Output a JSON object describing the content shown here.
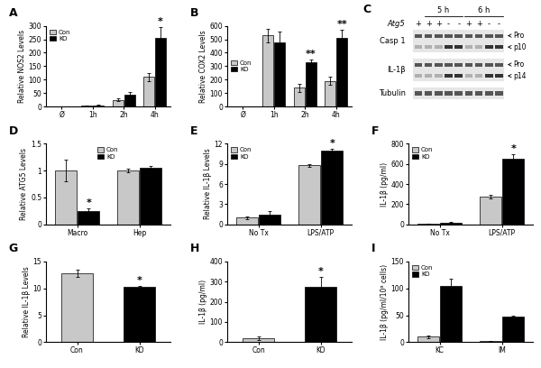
{
  "chart_data": [
    {
      "type": "bar",
      "title": "A",
      "y_label": "Relative NOS2 Levels",
      "categories": [
        "Ø",
        "1h",
        "2h",
        "4h"
      ],
      "series": [
        {
          "name": "Con",
          "color": "#c8c8c8",
          "values": [
            1,
            3,
            25,
            110
          ],
          "errors": [
            0,
            1,
            5,
            15
          ]
        },
        {
          "name": "KO",
          "color": "#000000",
          "values": [
            1,
            5,
            45,
            255
          ],
          "errors": [
            0,
            2,
            10,
            40
          ]
        }
      ],
      "ylim": [
        0,
        300
      ],
      "yticks": [
        0,
        50,
        100,
        150,
        200,
        250,
        300
      ],
      "legend": "upper left",
      "annotations": [
        {
          "text": "*",
          "category": "4h",
          "series": "KO"
        }
      ]
    },
    {
      "type": "bar",
      "title": "B",
      "y_label": "Relative COX2 Levels",
      "categories": [
        "Ø",
        "1h",
        "2h",
        "4h"
      ],
      "series": [
        {
          "name": "Con",
          "color": "#c8c8c8",
          "values": [
            1,
            530,
            140,
            190
          ],
          "errors": [
            0,
            50,
            30,
            30
          ]
        },
        {
          "name": "KO",
          "color": "#000000",
          "values": [
            1,
            480,
            330,
            510
          ],
          "errors": [
            0,
            80,
            20,
            60
          ]
        }
      ],
      "ylim": [
        0,
        600
      ],
      "yticks": [
        0,
        100,
        200,
        300,
        400,
        500,
        600
      ],
      "legend": "center left",
      "annotations": [
        {
          "text": "**",
          "category": "2h",
          "series": "KO"
        },
        {
          "text": "**",
          "category": "4h",
          "series": "KO"
        }
      ]
    },
    {
      "type": "bar",
      "title": "D",
      "y_label": "Relative ATG5 Levels",
      "categories": [
        "Macro",
        "Hep"
      ],
      "series": [
        {
          "name": "Con",
          "color": "#c8c8c8",
          "values": [
            1.0,
            1.0
          ],
          "errors": [
            0.2,
            0.03
          ]
        },
        {
          "name": "KO",
          "color": "#000000",
          "values": [
            0.25,
            1.05
          ],
          "errors": [
            0.05,
            0.03
          ]
        }
      ],
      "ylim": [
        0,
        1.5
      ],
      "yticks": [
        0,
        0.5,
        1,
        1.5
      ],
      "legend": "upper center",
      "annotations": [
        {
          "text": "*",
          "category": "Macro",
          "series": "KO"
        }
      ]
    },
    {
      "type": "bar",
      "title": "E",
      "y_label": "Relative IL-1β Levels",
      "categories": [
        "No Tx",
        "LPS/ATP"
      ],
      "series": [
        {
          "name": "Con",
          "color": "#c8c8c8",
          "values": [
            1,
            8.8
          ],
          "errors": [
            0.2,
            0.2
          ]
        },
        {
          "name": "KO",
          "color": "#000000",
          "values": [
            1.5,
            11
          ],
          "errors": [
            0.5,
            0.2
          ]
        }
      ],
      "ylim": [
        0,
        12
      ],
      "yticks": [
        0,
        3,
        6,
        9,
        12
      ],
      "legend": "upper left",
      "annotations": [
        {
          "text": "*",
          "category": "LPS/ATP",
          "series": "KO"
        }
      ]
    },
    {
      "type": "bar",
      "title": "F",
      "y_label": "IL-1β (pg/ml)",
      "categories": [
        "No Tx",
        "LPS/ATP"
      ],
      "series": [
        {
          "name": "Con",
          "color": "#c8c8c8",
          "values": [
            10,
            275
          ],
          "errors": [
            2,
            15
          ]
        },
        {
          "name": "KO",
          "color": "#000000",
          "values": [
            20,
            650
          ],
          "errors": [
            3,
            45
          ]
        }
      ],
      "ylim": [
        0,
        800
      ],
      "yticks": [
        0,
        200,
        400,
        600,
        800
      ],
      "legend": "upper left",
      "annotations": [
        {
          "text": "*",
          "category": "LPS/ATP",
          "series": "KO"
        }
      ]
    },
    {
      "type": "bar",
      "title": "G",
      "y_label": "Relative IL-1β Levels",
      "categories": [
        "Con",
        "KO"
      ],
      "series": [
        {
          "colors": [
            "#c8c8c8",
            "#000000"
          ],
          "values": [
            12.8,
            10.2
          ],
          "errors": [
            0.7,
            0.3
          ]
        }
      ],
      "ylim": [
        0,
        15
      ],
      "yticks": [
        0,
        5,
        10,
        15
      ],
      "annotations": [
        {
          "text": "*",
          "category": "KO"
        }
      ]
    },
    {
      "type": "bar",
      "title": "H",
      "y_label": "IL-1β (pg/ml)",
      "categories": [
        "Con",
        "KO"
      ],
      "series": [
        {
          "colors": [
            "#c8c8c8",
            "#000000"
          ],
          "values": [
            20,
            275
          ],
          "errors": [
            8,
            50
          ]
        }
      ],
      "ylim": [
        0,
        400
      ],
      "yticks": [
        0,
        100,
        200,
        300,
        400
      ],
      "annotations": [
        {
          "text": "*",
          "category": "KO"
        }
      ]
    },
    {
      "type": "bar",
      "title": "I",
      "y_label": "IL-1β (pg/ml/10⁶ cells)",
      "categories": [
        "KC",
        "IM"
      ],
      "series": [
        {
          "name": "Con",
          "color": "#c8c8c8",
          "values": [
            10,
            2
          ],
          "errors": [
            3,
            1
          ]
        },
        {
          "name": "KO",
          "color": "#000000",
          "values": [
            105,
            47
          ],
          "errors": [
            12,
            3
          ]
        }
      ],
      "ylim": [
        0,
        150
      ],
      "yticks": [
        0,
        50,
        100,
        150
      ],
      "legend": "upper left"
    }
  ],
  "blot": {
    "title": "C",
    "lane_label": "Atg5",
    "lanes": [
      {
        "group": null,
        "atg5": "+"
      },
      {
        "group": "5 h",
        "atg5": "+"
      },
      {
        "group": "5 h",
        "atg5": "+"
      },
      {
        "group": "5 h",
        "atg5": "-"
      },
      {
        "group": "5 h",
        "atg5": "-"
      },
      {
        "group": "6 h",
        "atg5": "+"
      },
      {
        "group": "6 h",
        "atg5": "+"
      },
      {
        "group": "6 h",
        "atg5": "-"
      },
      {
        "group": "6 h",
        "atg5": "-"
      }
    ],
    "rows": [
      {
        "name": "Casp 1",
        "forms": [
          "Pro",
          "p10"
        ]
      },
      {
        "name": "IL-1β",
        "forms": [
          "Pro",
          "p14"
        ]
      },
      {
        "name": "Tubulin",
        "forms": []
      }
    ]
  }
}
